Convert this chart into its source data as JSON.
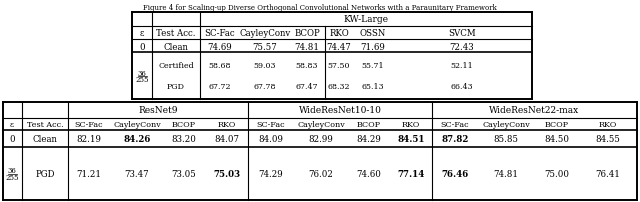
{
  "title": "Figure 4 for Scaling-up Diverse Orthogonal Convolutional Networks with a Paraunitary Framework",
  "top_table": {
    "network": "KW-Large",
    "col_headers": [
      "ε",
      "Test Acc.",
      "SC-Fac",
      "CayleyConv",
      "BCOP",
      "RKO",
      "OSSN",
      "SVCM"
    ],
    "rows": [
      {
        "eps": "0",
        "test": "Clean",
        "vals": [
          "74.69",
          "75.57",
          "74.81",
          "74.47",
          "71.69",
          "72.43"
        ],
        "bold": []
      },
      {
        "eps": "36/255",
        "test": "Certified",
        "vals": [
          "58.68",
          "59.03",
          "58.83",
          "57.50",
          "55.71",
          "52.11"
        ],
        "bold": []
      },
      {
        "eps": "",
        "test": "PGD",
        "vals": [
          "67.72",
          "67.78",
          "67.47",
          "68.32",
          "65.13",
          "66.43"
        ],
        "bold": []
      }
    ]
  },
  "bottom_table": {
    "networks": [
      "ResNet9",
      "WideResNet10-10",
      "WideResNet22-max"
    ],
    "col_headers": [
      "ε",
      "Test Acc.",
      "SC-Fac",
      "CayleyConv",
      "BCOP",
      "RKO",
      "SC-Fac",
      "CayleyConv",
      "BCOP",
      "RKO",
      "SC-Fac",
      "CayleyConv",
      "BCOP",
      "RKO"
    ],
    "rows": [
      {
        "eps": "0",
        "test": "Clean",
        "vals": [
          "82.19",
          "84.26",
          "83.20",
          "84.07",
          "84.09",
          "82.99",
          "84.29",
          "84.51",
          "87.82",
          "85.85",
          "84.50",
          "84.55"
        ],
        "bold": [
          "84.26",
          "84.51",
          "87.82"
        ]
      },
      {
        "eps": "36/255",
        "test": "PGD",
        "vals": [
          "71.21",
          "73.47",
          "73.05",
          "75.03",
          "74.29",
          "76.02",
          "74.60",
          "77.14",
          "76.46",
          "74.81",
          "75.00",
          "76.41"
        ],
        "bold": [
          "75.03",
          "77.14",
          "76.46"
        ]
      }
    ]
  }
}
